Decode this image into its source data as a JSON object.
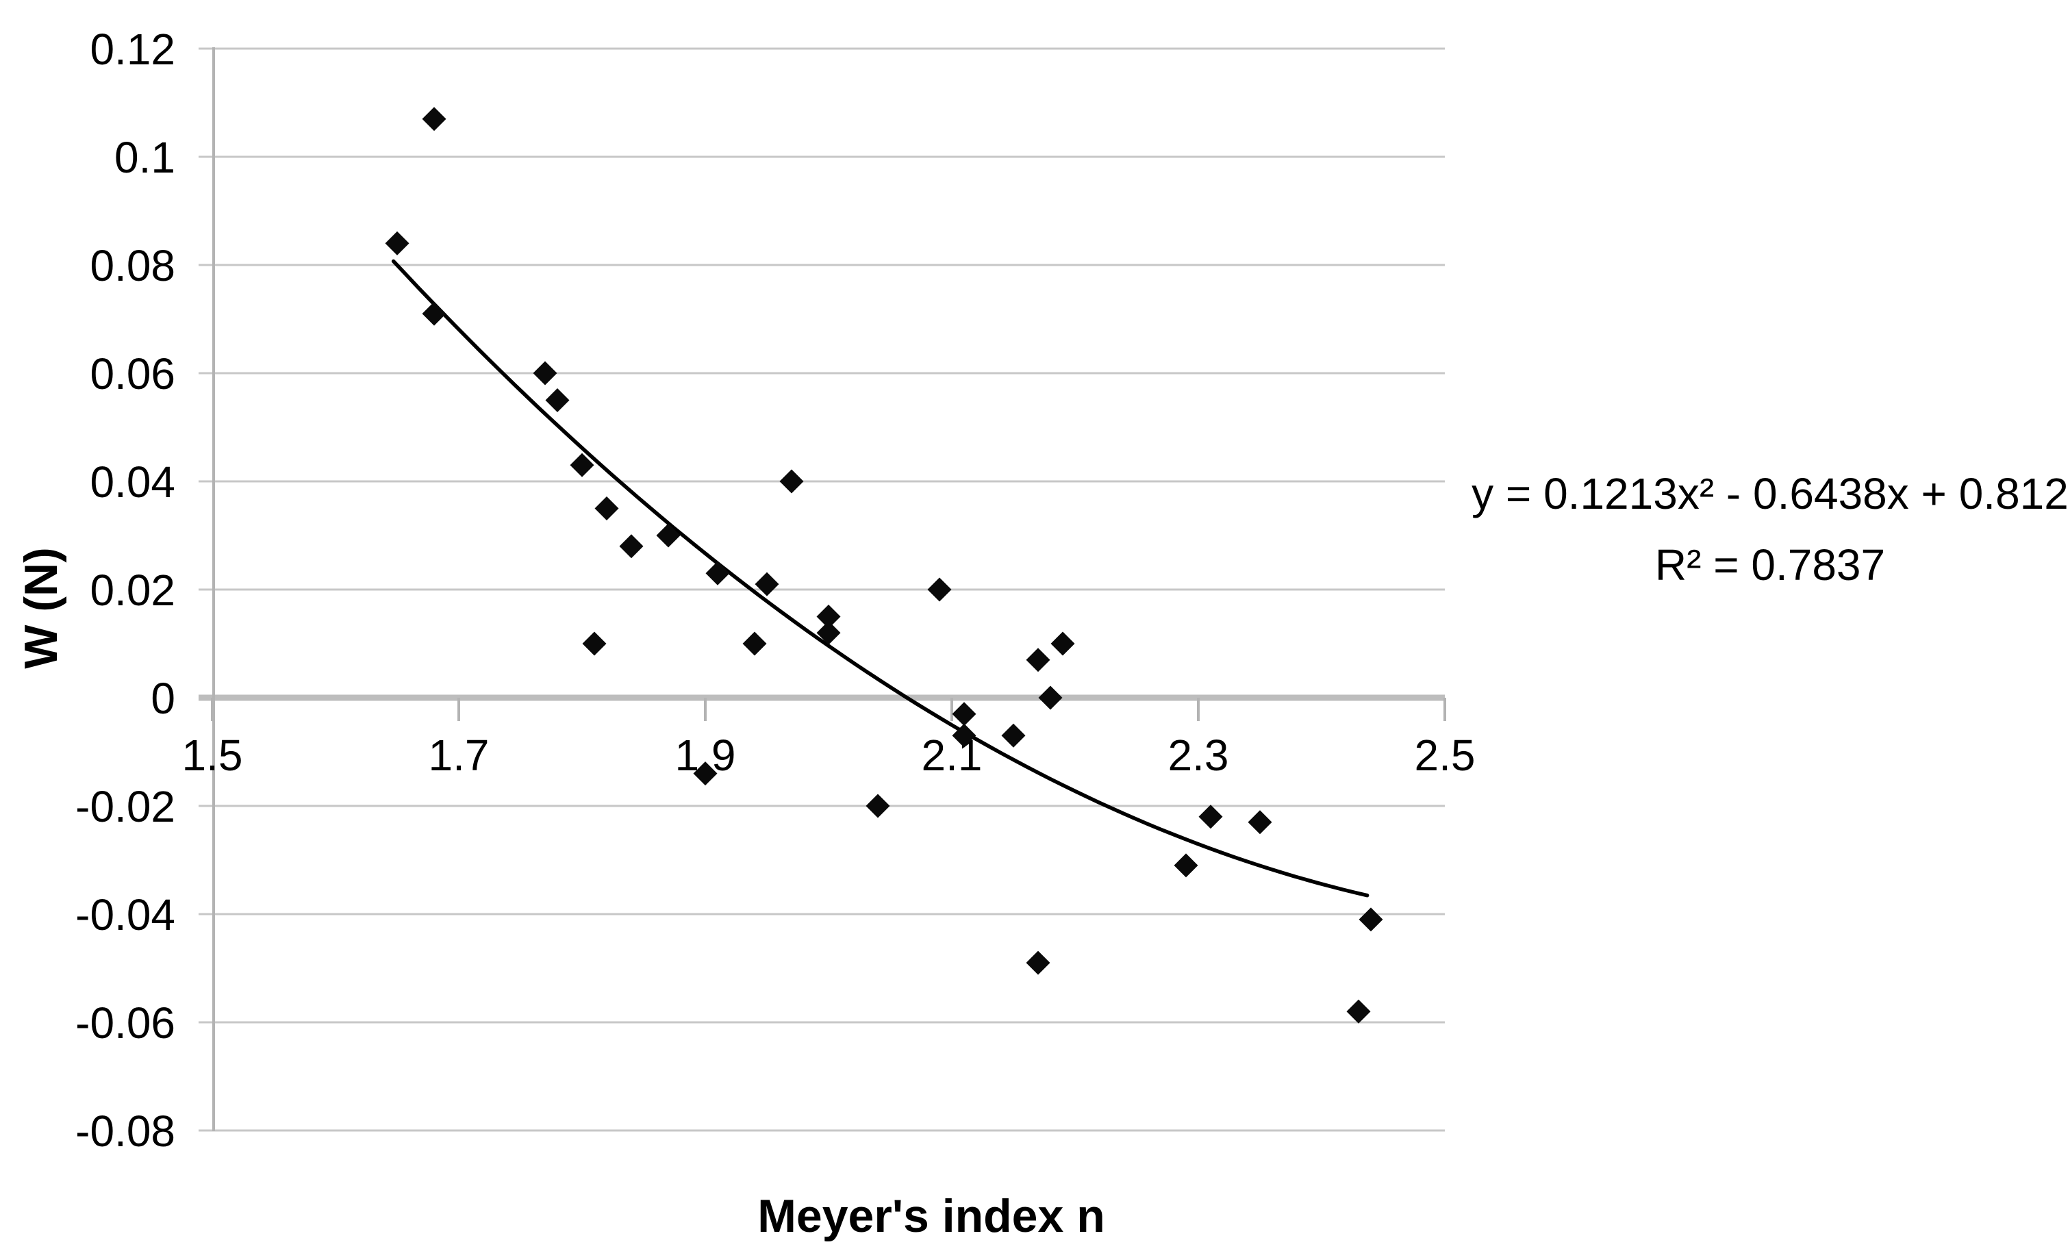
{
  "chart_data": {
    "type": "scatter",
    "title": "",
    "xlabel": "Meyer's index n",
    "ylabel": "W (N)",
    "xlim": [
      1.5,
      2.5
    ],
    "ylim": [
      -0.08,
      0.12
    ],
    "grid": true,
    "legend_position": "none",
    "marker": "diamond",
    "x_ticks": [
      1.5,
      1.7,
      1.9,
      2.1,
      2.3,
      2.5
    ],
    "x_tick_labels": [
      "1.5",
      "1.7",
      "1.9",
      "2.1",
      "2.3",
      "2.5"
    ],
    "y_ticks": [
      0.12,
      0.1,
      0.08,
      0.06,
      0.04,
      0.02,
      0,
      -0.02,
      -0.04,
      -0.06,
      -0.08
    ],
    "y_tick_labels": [
      "0.12",
      "0.1",
      "0.08",
      "0.06",
      "0.04",
      "0.02",
      "0",
      "-0.02",
      "-0.04",
      "-0.06",
      "-0.08"
    ],
    "points": [
      [
        1.65,
        0.084
      ],
      [
        1.68,
        0.107
      ],
      [
        1.68,
        0.071
      ],
      [
        1.77,
        0.06
      ],
      [
        1.78,
        0.055
      ],
      [
        1.8,
        0.043
      ],
      [
        1.81,
        0.01
      ],
      [
        1.82,
        0.035
      ],
      [
        1.84,
        0.028
      ],
      [
        1.87,
        0.03
      ],
      [
        1.9,
        -0.014
      ],
      [
        1.91,
        0.023
      ],
      [
        1.94,
        0.01
      ],
      [
        1.95,
        0.021
      ],
      [
        1.97,
        0.04
      ],
      [
        2.0,
        0.015
      ],
      [
        2.0,
        0.012
      ],
      [
        2.04,
        -0.02
      ],
      [
        2.09,
        0.02
      ],
      [
        2.11,
        -0.003
      ],
      [
        2.11,
        -0.007
      ],
      [
        2.15,
        -0.007
      ],
      [
        2.17,
        0.007
      ],
      [
        2.18,
        0.0
      ],
      [
        2.19,
        0.01
      ],
      [
        2.17,
        -0.049
      ],
      [
        2.29,
        -0.031
      ],
      [
        2.31,
        -0.022
      ],
      [
        2.35,
        -0.023
      ],
      [
        2.44,
        -0.041
      ],
      [
        2.43,
        -0.058
      ]
    ],
    "trendline": {
      "type": "polynomial",
      "degree": 2,
      "coefficients": [
        0.1213,
        -0.6438,
        0.812
      ],
      "x_start": 1.647,
      "x_end": 2.437,
      "equation_label": "y = 0.1213x² - 0.6438x + 0.812",
      "r_squared_label": "R² = 0.7837"
    },
    "colors": {
      "marker": "#0a0a0a",
      "trendline": "#000000",
      "gridline": "#c7c7c7",
      "zero_line": "#bdbdbd",
      "axis_line": "#b3b3b3",
      "tick_text": "#000000"
    }
  }
}
